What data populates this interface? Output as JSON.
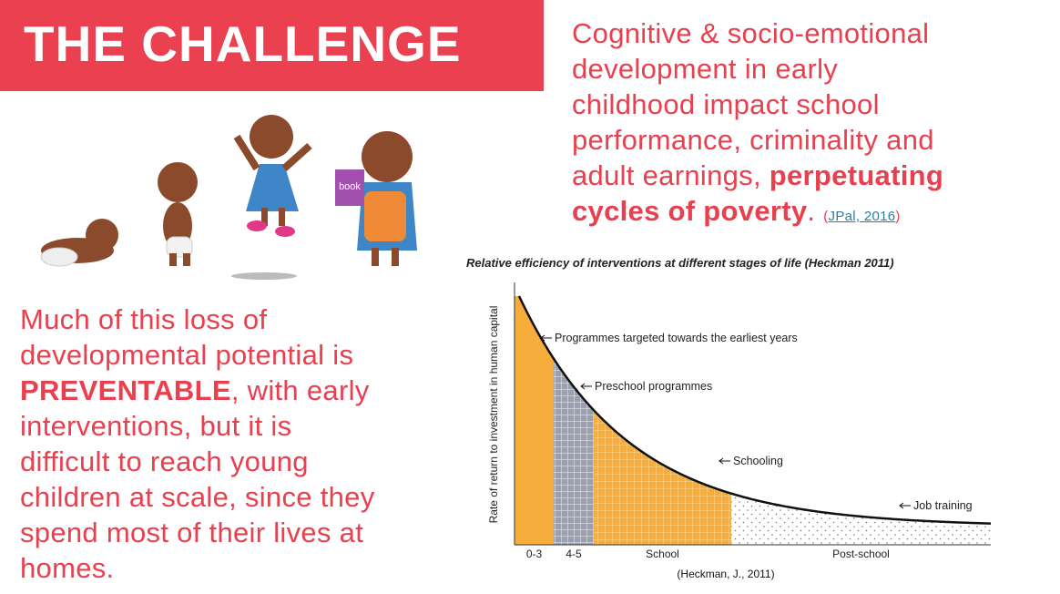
{
  "header": {
    "title": "THE CHALLENGE"
  },
  "intro": {
    "lines": [
      "Cognitive & socio-emotional",
      "development in early",
      "childhood impact school",
      "performance, criminality and"
    ],
    "lead": "adult earnings, ",
    "emphasis": [
      "perpetuating",
      "cycles of poverty"
    ],
    "end": ". ",
    "citation_open": "(",
    "citation_link": "JPal, 2016",
    "citation_close": ")"
  },
  "body": {
    "lines": [
      "Much of this loss of",
      "developmental potential is"
    ],
    "emphasis": "PREVENTABLE",
    "emphasis_tail": ", with early",
    "rest": [
      "interventions, but it is",
      "difficult to reach young",
      "children at scale, since they",
      "spend most of their lives at",
      "homes."
    ]
  },
  "illustration": {
    "book_label": "book"
  },
  "figure": {
    "title": "Relative efficiency of interventions at different stages of life (Heckman 2011)",
    "y_label": "Rate of return to investment in human capital",
    "annotations": [
      "Programmes targeted towards the earliest years",
      "Preschool programmes",
      "Schooling",
      "Job training"
    ],
    "stages": [
      "0-3",
      "4-5",
      "School",
      "Post-school"
    ],
    "caption": "(Heckman, J., 2011)"
  }
}
